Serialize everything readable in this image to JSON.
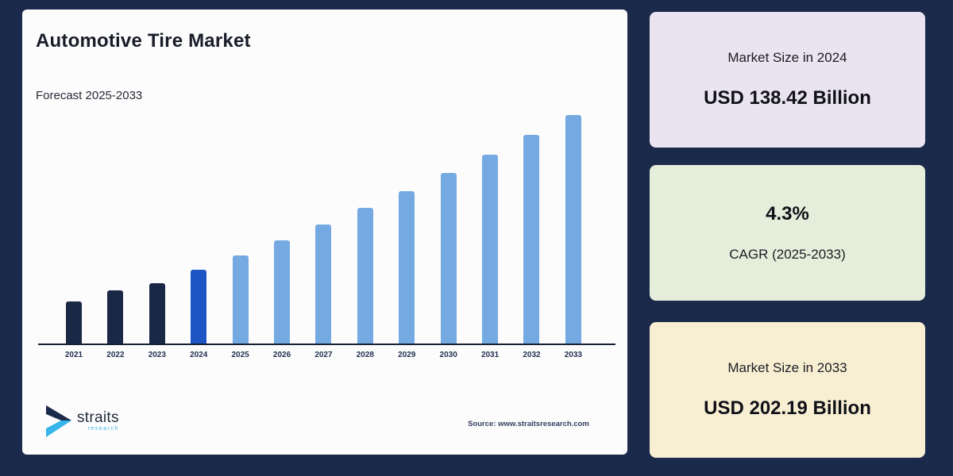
{
  "page": {
    "background": "#1b2a4a"
  },
  "panel": {
    "title": "Automotive Tire Market",
    "subtitle": "Forecast 2025-2033",
    "source": "Source: www.straitsresearch.com",
    "logo": {
      "brand": "straits",
      "brand_sub": "research"
    }
  },
  "stat_cards": [
    {
      "label": "Market Size in 2024",
      "value": "USD 138.42 Billion",
      "bg": "#e9e4ef"
    },
    {
      "value": "4.3%",
      "label": "CAGR (2025-2033)",
      "bg": "#e5eedb"
    },
    {
      "label": "Market Size in 2033",
      "value": "USD 202.19 Billion",
      "bg": "#f8efd3"
    }
  ],
  "chart_data": {
    "type": "bar",
    "title": "Automotive Tire Market",
    "subtitle": "Forecast 2025-2033",
    "unit": "USD Billion",
    "x": [
      2021,
      2022,
      2023,
      2024,
      2025,
      2026,
      2027,
      2028,
      2029,
      2030,
      2031,
      2032,
      2033
    ],
    "values": [
      125.3,
      129.9,
      132.9,
      138.42,
      144.37,
      150.58,
      157.05,
      163.81,
      170.85,
      178.2,
      185.86,
      193.85,
      202.19
    ],
    "historical_years": [
      2021,
      2022,
      2023
    ],
    "base_year": 2024,
    "forecast_years": [
      2025,
      2026,
      2027,
      2028,
      2029,
      2030,
      2031,
      2032,
      2033
    ],
    "cagr_pct": 4.3,
    "market_size_2024": 138.42,
    "market_size_2033": 202.19,
    "colors": {
      "historical": "#192845",
      "base_year": "#1d55c4",
      "forecast": "#74a9e1",
      "axis": "#161f33"
    },
    "xlabel": "",
    "ylabel": "",
    "y_axis_visible": false,
    "gridlines": false,
    "legend": "none"
  }
}
